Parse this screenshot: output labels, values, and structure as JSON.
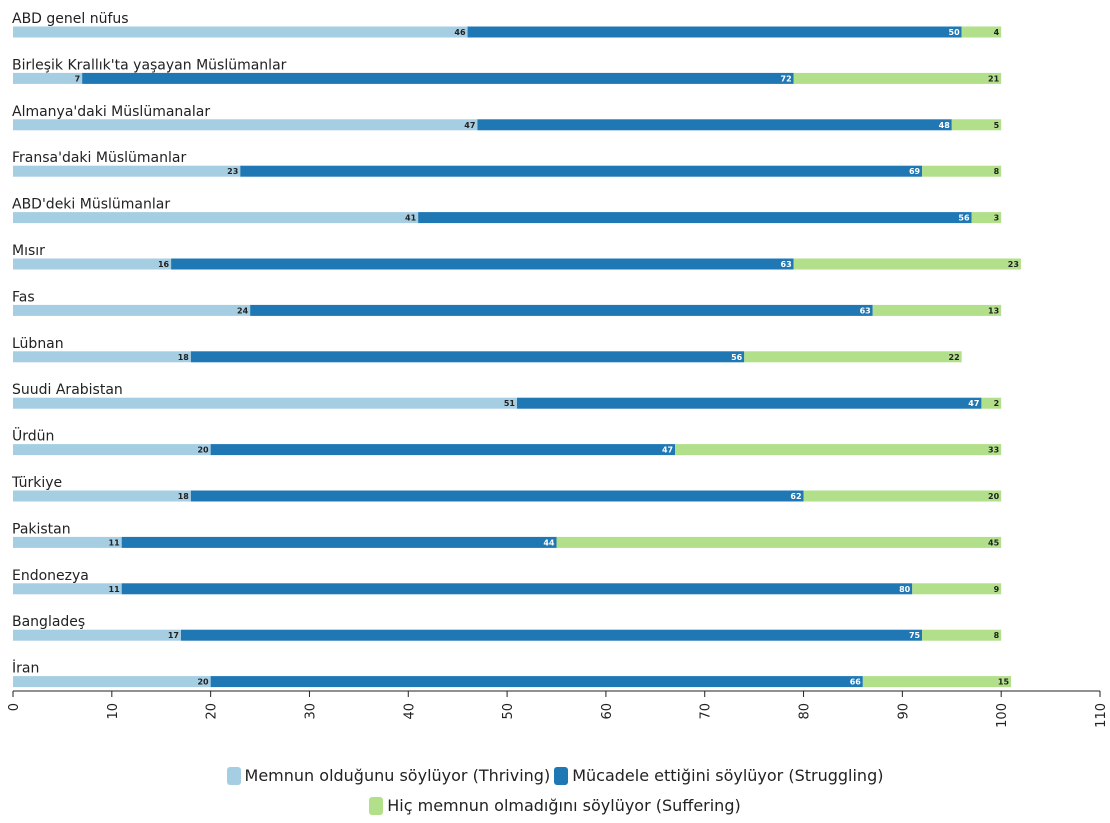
{
  "chart_data": {
    "type": "bar",
    "orientation": "horizontal",
    "stacked": true,
    "categories": [
      "ABD genel nüfus",
      "Birleşik Krallık'ta yaşayan Müslümanlar",
      "Almanya'daki Müslümanalar",
      "Fransa'daki Müslümanlar",
      "ABD'deki Müslümanlar",
      "Mısır",
      "Fas",
      "Lübnan",
      "Suudi Arabistan",
      "Ürdün",
      "Türkiye",
      "Pakistan",
      "Endonezya",
      "Bangladeş",
      "İran"
    ],
    "series": [
      {
        "name": "Memnun olduğunu söylüyor (Thriving)",
        "color": "#a6cee3",
        "values": [
          46,
          7,
          47,
          23,
          41,
          16,
          24,
          18,
          51,
          20,
          18,
          11,
          11,
          17,
          20
        ]
      },
      {
        "name": "Mücadele ettiğini söylüyor (Struggling)",
        "color": "#1f78b4",
        "values": [
          50,
          72,
          48,
          69,
          56,
          63,
          63,
          56,
          47,
          47,
          62,
          44,
          80,
          75,
          66
        ]
      },
      {
        "name": "Hiç memnun olmadığını söylüyor (Suffering)",
        "color": "#b2df8a",
        "values": [
          4,
          21,
          5,
          8,
          3,
          23,
          13,
          22,
          2,
          33,
          20,
          45,
          9,
          8,
          15
        ]
      }
    ],
    "xlim": [
      0,
      110
    ],
    "xticks": [
      0,
      10,
      20,
      30,
      40,
      50,
      60,
      70,
      80,
      90,
      100,
      110
    ],
    "title": "",
    "xlabel": "",
    "ylabel": "",
    "legend_position": "bottom-center",
    "grid": false
  }
}
